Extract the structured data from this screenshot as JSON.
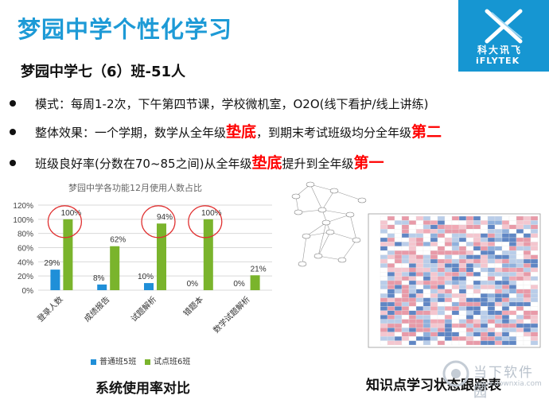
{
  "slide": {
    "title": "梦园中学个性化学习",
    "subtitle": "梦园中学七（6）班-51人",
    "bullets": [
      {
        "parts": [
          {
            "text": "模式：每周1-2次，下午第四节课，学校微机室，O2O(线下看护/线上讲练)",
            "hl": false
          }
        ]
      },
      {
        "parts": [
          {
            "text": "整体效果：一个学期，数学从全年级",
            "hl": false
          },
          {
            "text": "垫底",
            "hl": true
          },
          {
            "text": "，到期末考试班级均分全年级",
            "hl": false
          },
          {
            "text": "第二",
            "hl": true
          }
        ]
      },
      {
        "parts": [
          {
            "text": "班级良好率(分数在70~85之间)从全年级",
            "hl": false
          },
          {
            "text": "垫底",
            "hl": true
          },
          {
            "text": "提升到全年级",
            "hl": false
          },
          {
            "text": "第一",
            "hl": true
          }
        ]
      }
    ],
    "left_caption": "系统使用率对比",
    "right_caption": "知识点学习状态跟踪表"
  },
  "logo": {
    "cn": "科大讯飞",
    "en": "iFLYTEK",
    "color": "#1696d2"
  },
  "watermark": {
    "text": "当下软件园",
    "url": "www.downxia.com"
  },
  "colors": {
    "title": "#1d9ad6",
    "highlight": "#ff0000",
    "series1": "#1f8fd8",
    "series2": "#7ab42c",
    "circle": "#e03030"
  },
  "chart_data": {
    "type": "bar",
    "title": "梦园中学各功能12月使用人数占比",
    "categories": [
      "登录人数",
      "成绩报告",
      "试题解析",
      "错题本",
      "数学试题解析"
    ],
    "series": [
      {
        "name": "普通班5班",
        "values": [
          29,
          8,
          10,
          0,
          0
        ],
        "labels": [
          "29%",
          "8%",
          "10%",
          "0%",
          "0%"
        ],
        "color": "#1f8fd8"
      },
      {
        "name": "试点班6班",
        "values": [
          100,
          62,
          94,
          100,
          21
        ],
        "labels": [
          "100%",
          "62%",
          "94%",
          "100%",
          "21%"
        ],
        "color": "#7ab42c"
      }
    ],
    "y_ticks": [
      "0%",
      "20%",
      "40%",
      "60%",
      "80%",
      "100%",
      "120%"
    ],
    "ylim": [
      0,
      120
    ],
    "grid": true,
    "legend": "bottom",
    "circled_categories": [
      0,
      2,
      3
    ]
  }
}
